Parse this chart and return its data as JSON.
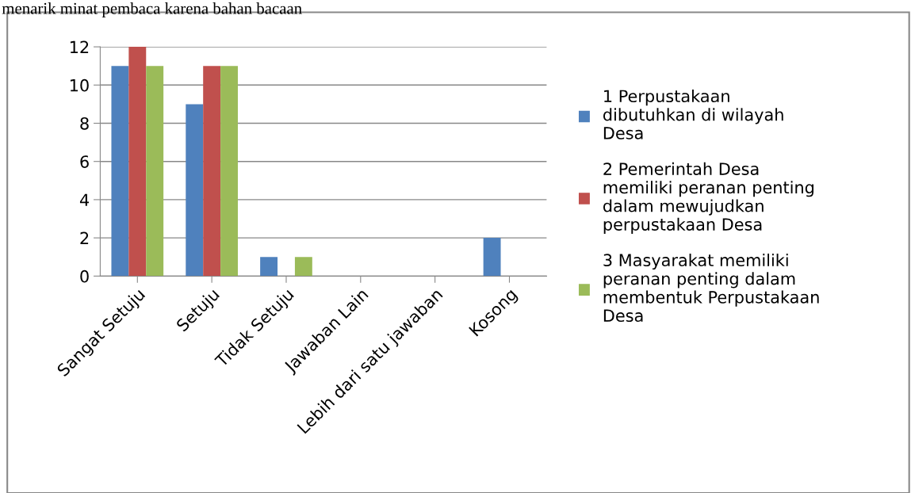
{
  "chart_data": {
    "type": "bar",
    "categories": [
      "Sangat Setuju",
      "Setuju",
      "Tidak Setuju",
      "Jawaban Lain",
      "Lebih dari satu jawaban",
      "Kosong"
    ],
    "series": [
      {
        "name": "1 Perpustakaan dibutuhkan di wilayah Desa",
        "color": "#4f81bd",
        "values": [
          11,
          9,
          1,
          0,
          0,
          2
        ]
      },
      {
        "name": "2 Pemerintah Desa memiliki peranan penting dalam mewujudkan perpustakaan Desa",
        "color": "#c0504d",
        "values": [
          12,
          11,
          0,
          0,
          0,
          0
        ]
      },
      {
        "name": "3 Masyarakat memiliki peranan penting dalam membentuk Perpustakaan Desa",
        "color": "#9bbb59",
        "values": [
          11,
          11,
          1,
          0,
          0,
          0
        ]
      }
    ],
    "ylim": [
      0,
      12
    ],
    "yticks": [
      0,
      2,
      4,
      6,
      8,
      10,
      12
    ],
    "grid": "y",
    "legend": "right",
    "annotations": [
      "menarik minat pembaca karena bahan bacaan"
    ]
  }
}
